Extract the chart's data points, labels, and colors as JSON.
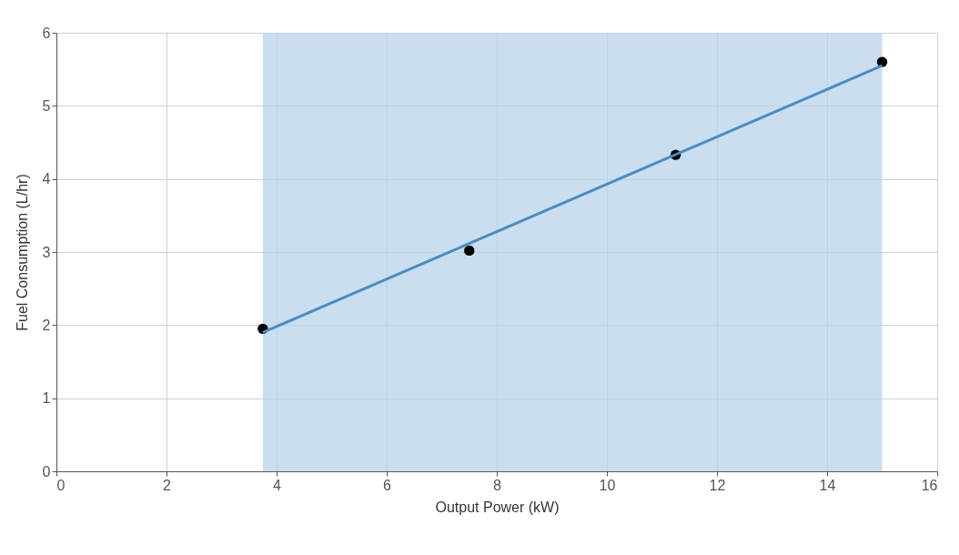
{
  "chart_data": {
    "type": "scatter",
    "xlabel": "Output Power (kW)",
    "ylabel": "Fuel Consumption (L/hr)",
    "xlim": [
      0,
      16
    ],
    "xticks": [
      0,
      2,
      4,
      6,
      8,
      10,
      12,
      14,
      16
    ],
    "ylim": [
      0,
      6
    ],
    "yticks": [
      0,
      1,
      2,
      3,
      4,
      5,
      6
    ],
    "grid": true,
    "x": [
      3.75,
      7.5,
      11.25,
      15
    ],
    "series": [
      {
        "marker": "circle",
        "color": "#000000",
        "values": [
          1.95,
          3.02,
          4.33,
          5.6
        ]
      },
      {
        "type": "line",
        "marker": "none",
        "color": "#4a8cc0",
        "x": [
          3.75,
          15
        ],
        "values": [
          1.9,
          5.55
        ]
      }
    ],
    "bands": [
      {
        "axis": "x",
        "from": 3.75,
        "to": 15,
        "color": "#b9d3ea"
      }
    ]
  }
}
